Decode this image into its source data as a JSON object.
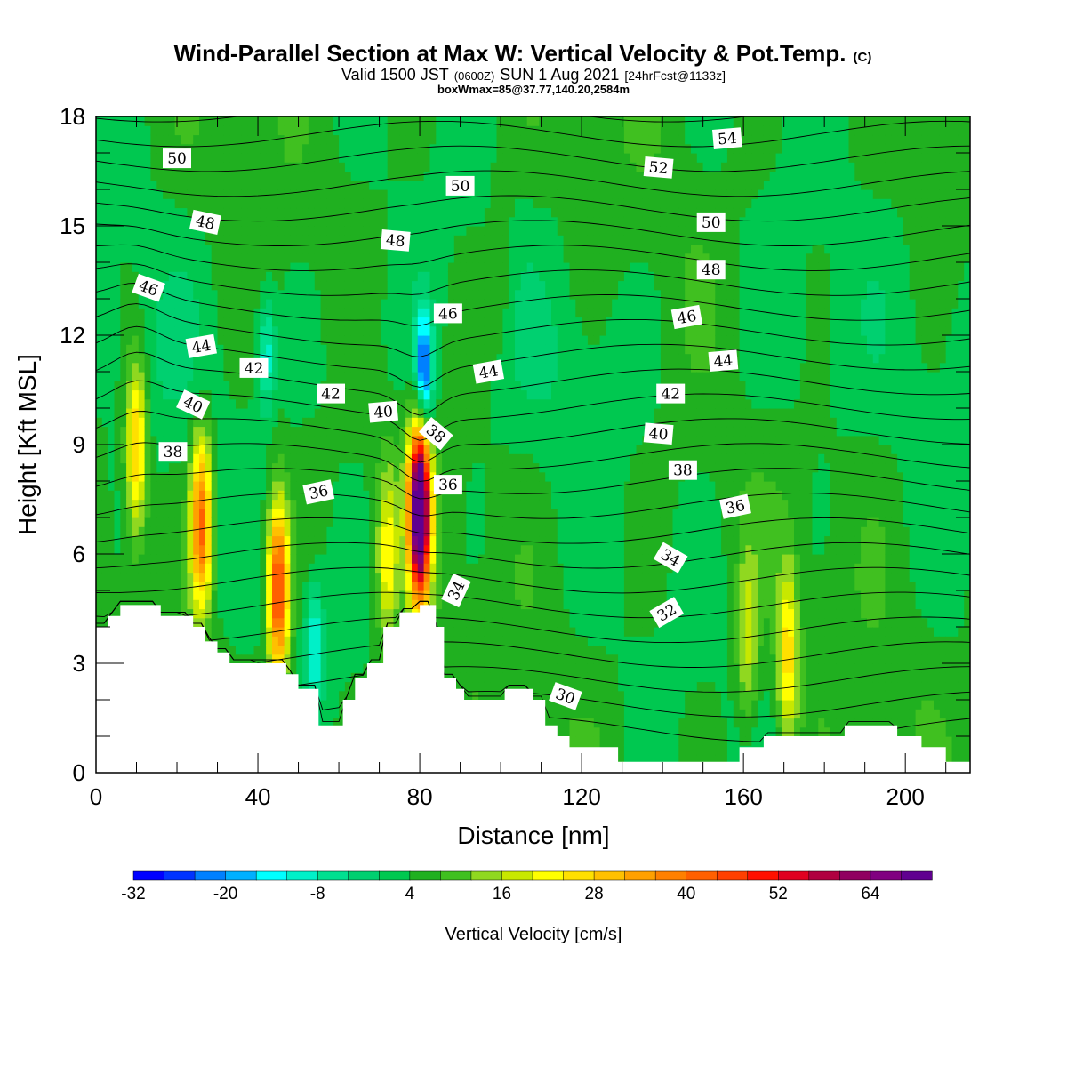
{
  "header": {
    "title": "Wind-Parallel Section at Max W: Vertical Velocity & Pot.Temp.",
    "title_units": "(C)",
    "valid_prefix": "Valid 1500 JST",
    "valid_utc": "(0600Z)",
    "valid_date": "SUN 1 Aug 2021",
    "forecast": "[24hrFcst@1133z]",
    "box_info": "boxWmax=85@37.77,140.20,2584m"
  },
  "chart_data": {
    "type": "heatmap",
    "x_axis": {
      "label": "Distance [nm]",
      "range": [
        0,
        216
      ],
      "major_ticks": [
        0,
        40,
        80,
        120,
        160,
        200
      ],
      "minor_step": 10
    },
    "y_axis": {
      "label": "Height [Kft MSL]",
      "range": [
        0,
        18
      ],
      "major_ticks": [
        0,
        3,
        6,
        9,
        12,
        15,
        18
      ],
      "minor_step": 1
    },
    "colorbar": {
      "label": "Vertical Velocity [cm/s]",
      "tick_labels": [
        -32,
        -20,
        -8,
        4,
        16,
        28,
        40,
        52,
        64
      ],
      "range": [
        -32,
        72
      ],
      "step": 4,
      "colors": [
        "#0000ff",
        "#0033ff",
        "#0080ff",
        "#00b0ff",
        "#00ffff",
        "#00f0c8",
        "#00e090",
        "#00d070",
        "#00c850",
        "#20b020",
        "#40c020",
        "#90d820",
        "#c8e800",
        "#ffff00",
        "#ffe000",
        "#ffc000",
        "#ffa000",
        "#ff8000",
        "#ff6000",
        "#ff4000",
        "#ff1000",
        "#e00020",
        "#b00040",
        "#900060",
        "#800080",
        "#600090"
      ]
    },
    "terrain_kft": [
      [
        0,
        4.0
      ],
      [
        3,
        4.0
      ],
      [
        3,
        4.3
      ],
      [
        6,
        4.3
      ],
      [
        6,
        4.6
      ],
      [
        16,
        4.6
      ],
      [
        16,
        4.3
      ],
      [
        24,
        4.3
      ],
      [
        24,
        4.0
      ],
      [
        27,
        4.0
      ],
      [
        27,
        3.6
      ],
      [
        30,
        3.6
      ],
      [
        30,
        3.3
      ],
      [
        33,
        3.3
      ],
      [
        33,
        3.0
      ],
      [
        47,
        3.0
      ],
      [
        47,
        2.7
      ],
      [
        50,
        2.7
      ],
      [
        50,
        2.3
      ],
      [
        55,
        2.3
      ],
      [
        55,
        1.3
      ],
      [
        61,
        1.3
      ],
      [
        61,
        2.0
      ],
      [
        64,
        2.0
      ],
      [
        64,
        2.6
      ],
      [
        67,
        2.6
      ],
      [
        67,
        3.0
      ],
      [
        71,
        3.0
      ],
      [
        71,
        4.0
      ],
      [
        75,
        4.0
      ],
      [
        75,
        4.4
      ],
      [
        80,
        4.4
      ],
      [
        80,
        4.6
      ],
      [
        84,
        4.6
      ],
      [
        84,
        4.0
      ],
      [
        86,
        4.0
      ],
      [
        86,
        2.6
      ],
      [
        89,
        2.6
      ],
      [
        89,
        2.3
      ],
      [
        91,
        2.3
      ],
      [
        91,
        2.0
      ],
      [
        101,
        2.0
      ],
      [
        101,
        2.3
      ],
      [
        108,
        2.3
      ],
      [
        108,
        2.0
      ],
      [
        111,
        2.0
      ],
      [
        111,
        1.3
      ],
      [
        114,
        1.3
      ],
      [
        114,
        1.0
      ],
      [
        117,
        1.0
      ],
      [
        117,
        0.7
      ],
      [
        129,
        0.7
      ],
      [
        129,
        0.3
      ],
      [
        159,
        0.3
      ],
      [
        159,
        0.7
      ],
      [
        165,
        0.7
      ],
      [
        165,
        1.0
      ],
      [
        185,
        1.0
      ],
      [
        185,
        1.3
      ],
      [
        198,
        1.3
      ],
      [
        198,
        1.0
      ],
      [
        204,
        1.0
      ],
      [
        204,
        0.7
      ],
      [
        210,
        0.7
      ],
      [
        210,
        0.3
      ],
      [
        216,
        0.3
      ]
    ],
    "theta_contours": [
      {
        "value": 50,
        "label": 50,
        "x": 20,
        "y": 16.85,
        "angle": 0
      },
      {
        "value": 48,
        "label": 48,
        "x": 27,
        "y": 15.1,
        "angle": 12
      },
      {
        "value": 46,
        "label": 46,
        "x": 13,
        "y": 13.3,
        "angle": 20
      },
      {
        "value": 44,
        "label": 44,
        "x": 26,
        "y": 11.7,
        "angle": -10
      },
      {
        "value": 42,
        "label": 42,
        "x": 39,
        "y": 11.1,
        "angle": 0
      },
      {
        "value": 40,
        "label": 40,
        "x": 24,
        "y": 10.1,
        "angle": 25
      },
      {
        "value": 38,
        "label": 38,
        "x": 19,
        "y": 8.8,
        "angle": 0
      },
      {
        "value": 36,
        "label": 36,
        "x": 55,
        "y": 7.7,
        "angle": -12
      },
      {
        "value": 42,
        "label": 42,
        "x": 58,
        "y": 10.4,
        "angle": 0
      },
      {
        "value": 40,
        "label": 40,
        "x": 71,
        "y": 9.9,
        "angle": -5
      },
      {
        "value": 48,
        "label": 48,
        "x": 74,
        "y": 14.6,
        "angle": 5
      },
      {
        "value": 50,
        "label": 50,
        "x": 90,
        "y": 16.1,
        "angle": 0
      },
      {
        "value": 46,
        "label": 46,
        "x": 87,
        "y": 12.6,
        "angle": 0
      },
      {
        "value": 44,
        "label": 44,
        "x": 97,
        "y": 11.0,
        "angle": -10
      },
      {
        "value": 38,
        "label": 38,
        "x": 84,
        "y": 9.3,
        "angle": 40
      },
      {
        "value": 36,
        "label": 36,
        "x": 87,
        "y": 7.9,
        "angle": 0
      },
      {
        "value": 34,
        "label": 34,
        "x": 89,
        "y": 5.0,
        "angle": -65
      },
      {
        "value": 30,
        "label": 30,
        "x": 116,
        "y": 2.1,
        "angle": 20
      },
      {
        "value": 54,
        "label": 54,
        "x": 156,
        "y": 17.4,
        "angle": -5
      },
      {
        "value": 52,
        "label": 52,
        "x": 139,
        "y": 16.6,
        "angle": 5
      },
      {
        "value": 50,
        "label": 50,
        "x": 152,
        "y": 15.1,
        "angle": 0
      },
      {
        "value": 48,
        "label": 48,
        "x": 152,
        "y": 13.8,
        "angle": 0
      },
      {
        "value": 46,
        "label": 46,
        "x": 146,
        "y": 12.5,
        "angle": -10
      },
      {
        "value": 44,
        "label": 44,
        "x": 155,
        "y": 11.3,
        "angle": -5
      },
      {
        "value": 42,
        "label": 42,
        "x": 142,
        "y": 10.4,
        "angle": 0
      },
      {
        "value": 40,
        "label": 40,
        "x": 139,
        "y": 9.3,
        "angle": 5
      },
      {
        "value": 38,
        "label": 38,
        "x": 145,
        "y": 8.3,
        "angle": 0
      },
      {
        "value": 36,
        "label": 36,
        "x": 158,
        "y": 7.3,
        "angle": -12
      },
      {
        "value": 34,
        "label": 34,
        "x": 142,
        "y": 5.9,
        "angle": 30
      },
      {
        "value": 32,
        "label": 32,
        "x": 141,
        "y": 4.4,
        "angle": -30
      }
    ],
    "updraft_cores": [
      {
        "x": 10,
        "y": 9.0,
        "w_cm_s": 30
      },
      {
        "x": 26,
        "y": 6.9,
        "w_cm_s": 42
      },
      {
        "x": 45,
        "y": 5.0,
        "w_cm_s": 48
      },
      {
        "x": 80,
        "y": 7.2,
        "w_cm_s": 85
      },
      {
        "x": 72,
        "y": 6.0,
        "w_cm_s": 22
      },
      {
        "x": 171,
        "y": 3.2,
        "w_cm_s": 26
      },
      {
        "x": 161,
        "y": 3.6,
        "w_cm_s": 18
      },
      {
        "x": 100,
        "y": 14.0,
        "w_cm_s": 10
      }
    ],
    "downdraft_cores": [
      {
        "x": 81,
        "y": 11.0,
        "w_cm_s": -28
      },
      {
        "x": 54,
        "y": 3.5,
        "w_cm_s": -12
      },
      {
        "x": 42,
        "y": 11.5,
        "w_cm_s": -10
      }
    ]
  }
}
